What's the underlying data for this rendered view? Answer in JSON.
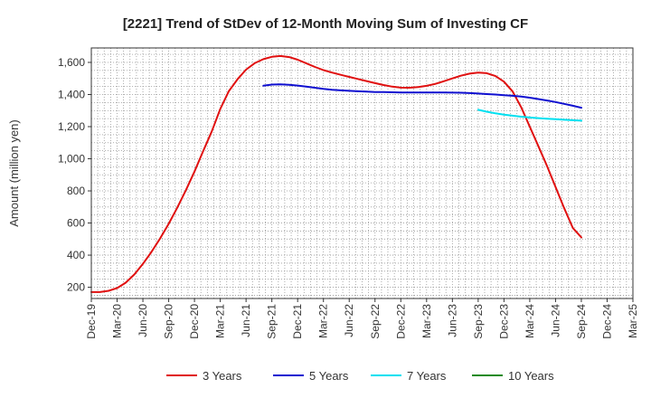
{
  "chart_data": {
    "type": "line",
    "title": "[2221]  Trend of StDev of 12-Month Moving Sum of Investing CF",
    "ylabel": "Amount (million yen)",
    "xlabel": "",
    "ylim": [
      130,
      1690
    ],
    "yticks": [
      200,
      400,
      600,
      800,
      1000,
      1200,
      1400,
      1600
    ],
    "ytick_labels": [
      "200",
      "400",
      "600",
      "800",
      "1,000",
      "1,200",
      "1,400",
      "1,600"
    ],
    "categories": [
      "Dec-19",
      "Mar-20",
      "Jun-20",
      "Sep-20",
      "Dec-20",
      "Mar-21",
      "Jun-21",
      "Sep-21",
      "Dec-21",
      "Mar-22",
      "Jun-22",
      "Sep-22",
      "Dec-22",
      "Mar-23",
      "Jun-23",
      "Sep-23",
      "Dec-23",
      "Mar-24",
      "Jun-24",
      "Sep-24",
      "Dec-24",
      "Mar-25"
    ],
    "grid": true,
    "legend_position": "bottom",
    "series": [
      {
        "name": "3 Years",
        "color": "#e01010",
        "x": [
          0,
          0.33,
          0.67,
          1,
          1.33,
          1.67,
          2,
          2.33,
          2.67,
          3,
          3.33,
          3.67,
          4,
          4.33,
          4.67,
          5,
          5.33,
          5.67,
          6,
          6.33,
          6.67,
          7,
          7.33,
          7.67,
          8,
          8.33,
          8.67,
          9,
          9.33,
          9.67,
          10,
          10.33,
          10.67,
          11,
          11.33,
          11.67,
          12,
          12.33,
          12.67,
          13,
          13.33,
          13.67,
          14,
          14.33,
          14.67,
          15,
          15.33,
          15.67,
          16,
          16.33,
          16.67,
          17,
          17.33,
          17.67,
          18,
          18.33,
          18.67,
          19
        ],
        "values": [
          170,
          170,
          178,
          195,
          228,
          280,
          345,
          420,
          505,
          595,
          695,
          805,
          920,
          1045,
          1170,
          1310,
          1420,
          1495,
          1555,
          1595,
          1620,
          1635,
          1640,
          1633,
          1617,
          1595,
          1572,
          1552,
          1537,
          1523,
          1510,
          1497,
          1484,
          1471,
          1459,
          1449,
          1443,
          1442,
          1446,
          1454,
          1466,
          1483,
          1500,
          1517,
          1530,
          1537,
          1533,
          1515,
          1480,
          1420,
          1320,
          1200,
          1080,
          955,
          825,
          695,
          570,
          510
        ]
      },
      {
        "name": "5 Years",
        "color": "#1010d0",
        "x": [
          6.67,
          7,
          7.33,
          7.67,
          8,
          8.33,
          8.67,
          9,
          9.33,
          9.67,
          10,
          10.33,
          10.67,
          11,
          11.33,
          11.67,
          12,
          12.33,
          12.67,
          13,
          13.33,
          13.67,
          14,
          14.33,
          14.67,
          15,
          15.33,
          15.67,
          16,
          16.33,
          16.67,
          17,
          17.33,
          17.67,
          18,
          18.33,
          18.67,
          19
        ],
        "values": [
          1455,
          1462,
          1463,
          1461,
          1456,
          1449,
          1442,
          1435,
          1430,
          1426,
          1423,
          1420,
          1418,
          1416,
          1415,
          1414,
          1413,
          1413,
          1413,
          1413,
          1413,
          1413,
          1412,
          1411,
          1409,
          1406,
          1403,
          1400,
          1396,
          1392,
          1387,
          1380,
          1372,
          1363,
          1353,
          1342,
          1330,
          1318
        ]
      },
      {
        "name": "7 Years",
        "color": "#00e0f0",
        "x": [
          15,
          15.33,
          15.67,
          16,
          16.33,
          16.67,
          17,
          17.33,
          17.67,
          18,
          18.33,
          18.67,
          19
        ],
        "values": [
          1305,
          1293,
          1283,
          1275,
          1268,
          1262,
          1257,
          1253,
          1249,
          1246,
          1243,
          1240,
          1237
        ]
      },
      {
        "name": "10 Years",
        "color": "#1a8a1a",
        "x": [],
        "values": []
      }
    ]
  }
}
